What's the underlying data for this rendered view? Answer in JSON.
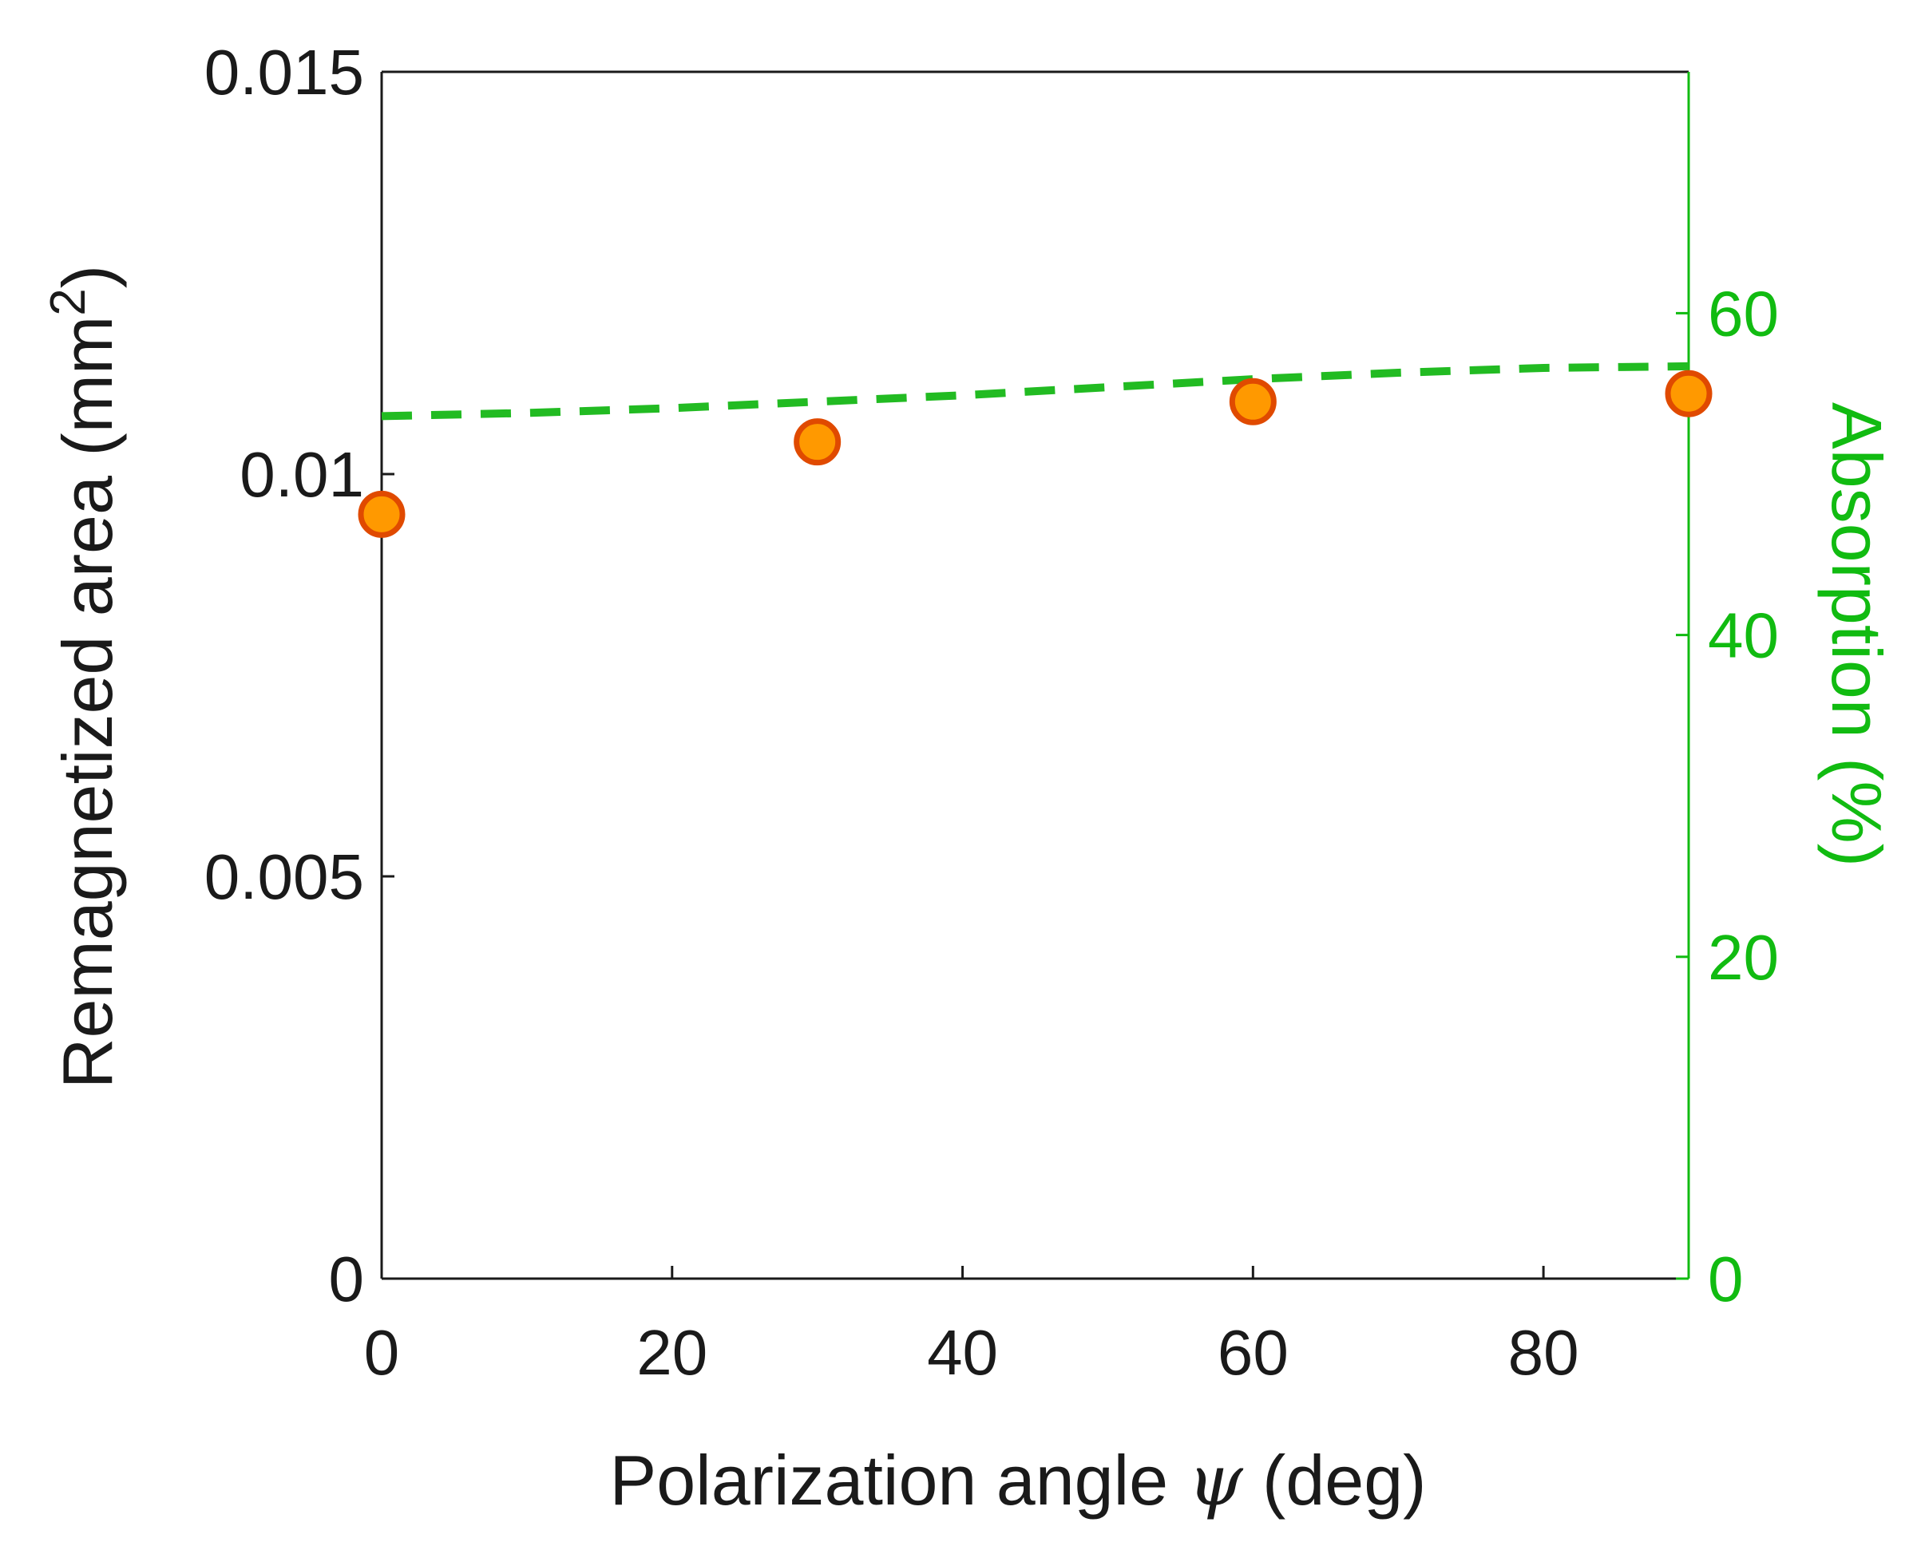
{
  "chart_data": {
    "type": "scatter",
    "title": "",
    "xlabel": "Polarization angle ψ (deg)",
    "xlabel_parts": {
      "before": "Polarization angle ",
      "symbol": "ψ",
      "after": " (deg)"
    },
    "ylabel": "Remagnetized area (mm2)",
    "ylabel_parts": {
      "before": "Remagnetized area (mm",
      "sup": "2",
      "after": ")"
    },
    "ylabel_right": "Absorption (%)",
    "xlim": [
      0,
      90
    ],
    "ylim": [
      0,
      0.015
    ],
    "ylim_right": [
      0,
      75
    ],
    "x_ticks": [
      "0",
      "20",
      "40",
      "60",
      "80"
    ],
    "y_ticks": [
      "0",
      "0.005",
      "0.01",
      "0.015"
    ],
    "y_ticks_right": [
      "0",
      "20",
      "40",
      "60"
    ],
    "grid": false,
    "series": [
      {
        "name": "Remagnetized area",
        "type": "scatter",
        "axis": "left",
        "x": [
          0,
          30,
          60,
          90
        ],
        "y": [
          0.0095,
          0.0104,
          0.0109,
          0.011
        ],
        "color": "#ff9900",
        "edge_color": "#e04a00"
      },
      {
        "name": "Absorption",
        "type": "line",
        "style": "dashed",
        "axis": "right",
        "x": [
          0,
          10,
          20,
          30,
          40,
          50,
          60,
          70,
          80,
          90
        ],
        "y": [
          53.6,
          53.8,
          54.1,
          54.5,
          54.9,
          55.4,
          55.9,
          56.3,
          56.6,
          56.7
        ],
        "color": "#22bb22"
      }
    ],
    "colors": {
      "axis": "#1a1a1a",
      "right_axis": "#11bb11"
    }
  }
}
